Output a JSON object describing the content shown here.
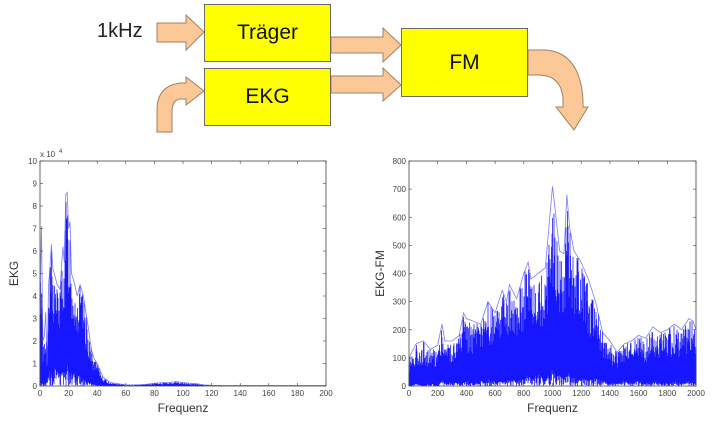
{
  "diagram": {
    "input_label": "1kHz",
    "boxes": {
      "carrier": "Träger",
      "ecg": "EKG",
      "fm": "FM"
    },
    "colors": {
      "box_fill": "#ffff00",
      "arrow_fill": "#fcc897",
      "arrow_stroke": "#a08060",
      "series": "#0000ff"
    }
  },
  "chart_data": [
    {
      "type": "line",
      "xlabel": "Frequenz",
      "ylabel": "EKG",
      "y_multiplier_label": "x 10",
      "y_multiplier_exp": "4",
      "xlim": [
        0,
        200
      ],
      "ylim": [
        0,
        10
      ],
      "xticks": [
        "0",
        "20",
        "40",
        "60",
        "80",
        "100",
        "120",
        "140",
        "160",
        "180",
        "200"
      ],
      "yticks": [
        "0",
        "1",
        "2",
        "3",
        "4",
        "5",
        "6",
        "7",
        "8",
        "9",
        "10"
      ],
      "grid": false,
      "series": [
        {
          "x": [
            0,
            1,
            2,
            3,
            4,
            5,
            6,
            7,
            8,
            9,
            10,
            12,
            14,
            16,
            17,
            18,
            19,
            20,
            21,
            22,
            24,
            26,
            28,
            30,
            32,
            34,
            36,
            38,
            40,
            42,
            44,
            46,
            48,
            50,
            55,
            60,
            65,
            70,
            75,
            80,
            85,
            90,
            95,
            100,
            105,
            110,
            115,
            120,
            130,
            140,
            160,
            180,
            200
          ],
          "y": [
            3.7,
            7.1,
            2.0,
            2.2,
            3.3,
            1.0,
            4.5,
            5.3,
            6.3,
            5.2,
            5.0,
            4.5,
            4.3,
            6.2,
            5.5,
            8.5,
            8.6,
            7.0,
            7.3,
            5.0,
            4.6,
            4.0,
            4.5,
            4.1,
            3.3,
            2.5,
            1.6,
            1.2,
            1.0,
            0.7,
            0.4,
            0.3,
            0.2,
            0.15,
            0.1,
            0.05,
            0.05,
            0.06,
            0.08,
            0.12,
            0.15,
            0.15,
            0.2,
            0.15,
            0.12,
            0.1,
            0.05,
            0.03,
            0.02,
            0.02,
            0.02,
            0.02,
            0.02
          ],
          "y_low": [
            0,
            0.2,
            0.1,
            0.1,
            0.2,
            0.2,
            0.8,
            1.0,
            0.9,
            0.2,
            0.8,
            1.0,
            0.5,
            0.8,
            1.0,
            1.0,
            0.9,
            1.2,
            0.8,
            0.9,
            0.8,
            0.5,
            0.6,
            0.4,
            0.2,
            0.2,
            0.1,
            0.1,
            0.05,
            0.05,
            0.02,
            0,
            0,
            0,
            0,
            0,
            0,
            0,
            0,
            0,
            0,
            0,
            0,
            0,
            0,
            0,
            0,
            0,
            0,
            0,
            0,
            0,
            0
          ]
        }
      ]
    },
    {
      "type": "line",
      "xlabel": "Frequenz",
      "ylabel": "EKG-FM",
      "xlim": [
        0,
        2000
      ],
      "ylim": [
        0,
        800
      ],
      "xticks": [
        "0",
        "200",
        "400",
        "600",
        "800",
        "1000",
        "1200",
        "1400",
        "1600",
        "1800",
        "2000"
      ],
      "yticks": [
        "0",
        "100",
        "200",
        "300",
        "400",
        "500",
        "600",
        "700",
        "800"
      ],
      "grid": false,
      "series": [
        {
          "x": [
            0,
            50,
            100,
            150,
            200,
            230,
            250,
            300,
            350,
            380,
            400,
            450,
            500,
            550,
            600,
            650,
            680,
            700,
            750,
            800,
            830,
            850,
            900,
            950,
            1000,
            1020,
            1050,
            1080,
            1100,
            1120,
            1150,
            1200,
            1250,
            1300,
            1350,
            1400,
            1450,
            1500,
            1550,
            1600,
            1650,
            1700,
            1750,
            1800,
            1850,
            1900,
            1950,
            1980,
            2000
          ],
          "y": [
            100,
            150,
            160,
            130,
            145,
            220,
            160,
            160,
            180,
            260,
            240,
            230,
            220,
            300,
            260,
            340,
            300,
            360,
            310,
            400,
            440,
            380,
            400,
            420,
            710,
            620,
            480,
            470,
            680,
            560,
            480,
            440,
            380,
            300,
            190,
            160,
            120,
            150,
            160,
            180,
            170,
            210,
            190,
            200,
            220,
            200,
            240,
            230,
            200
          ],
          "y_low": [
            0,
            10,
            0,
            10,
            0,
            20,
            10,
            15,
            10,
            20,
            20,
            10,
            20,
            25,
            20,
            15,
            20,
            30,
            20,
            30,
            40,
            30,
            40,
            30,
            60,
            50,
            40,
            50,
            60,
            40,
            30,
            30,
            20,
            30,
            20,
            10,
            10,
            20,
            10,
            20,
            10,
            20,
            10,
            10,
            20,
            10,
            20,
            10,
            15
          ]
        }
      ]
    }
  ]
}
